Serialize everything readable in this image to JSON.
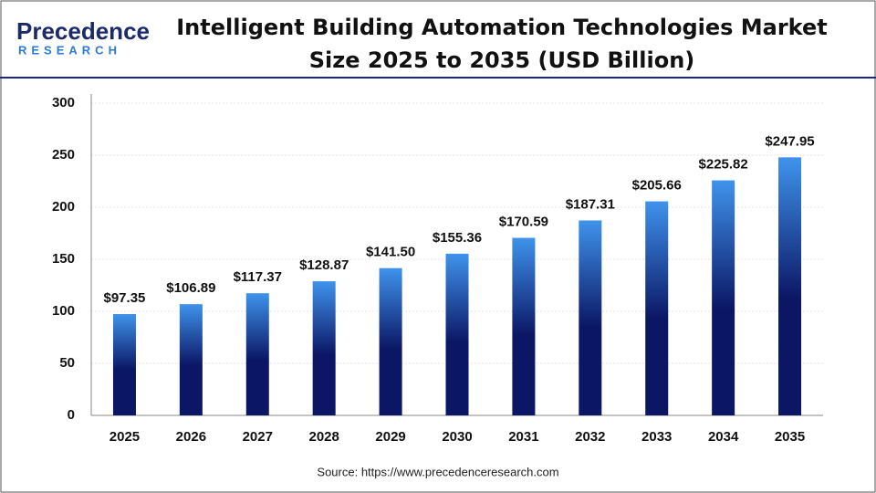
{
  "chart_data": {
    "type": "bar",
    "title": "Intelligent Building Automation Technologies Market Size 2025 to 2035 (USD Billion)",
    "logo_name": "Precedence",
    "logo_tagline": "RESEARCH",
    "source": "Source: https://www.precedenceresearch.com",
    "categories": [
      "2025",
      "2026",
      "2027",
      "2028",
      "2029",
      "2030",
      "2031",
      "2032",
      "2033",
      "2034",
      "2035"
    ],
    "values": [
      97.35,
      106.89,
      117.37,
      128.87,
      141.5,
      155.36,
      170.59,
      187.31,
      205.66,
      225.82,
      247.95
    ],
    "value_labels": [
      "$97.35",
      "$106.89",
      "$117.37",
      "$128.87",
      "$141.50",
      "$155.36",
      "$170.59",
      "$187.31",
      "$205.66",
      "$225.82",
      "$247.95"
    ],
    "gradient": [
      "#3f93ec",
      "#0b1664"
    ],
    "ylim": [
      0,
      300
    ],
    "yticks": [
      0,
      50,
      100,
      150,
      200,
      250,
      300
    ],
    "grid": true
  }
}
